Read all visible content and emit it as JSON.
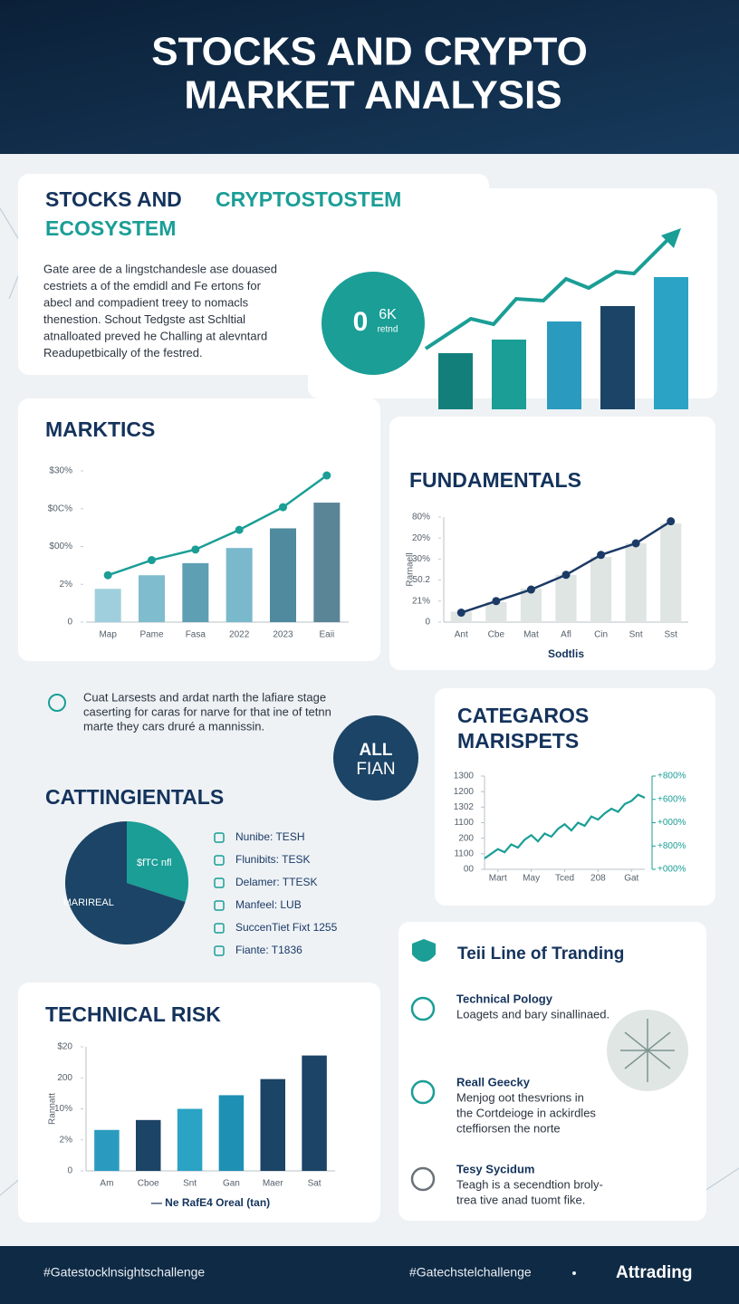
{
  "header": {
    "title_lines": [
      "STOCKS AND CRYPTO",
      "MARKET ANALYSIS"
    ]
  },
  "intro": {
    "title_start": "STOCKS AND",
    "title_accent": "CRYPTOSTOSTEM",
    "title_line2": "ECOSYSTEM",
    "text_lines": [
      "Gate aree de a lingstchandesle ase douased",
      "cestriets a of the emdidl and Fe ertons for",
      "abecl and compadient treey to nomacls",
      "thenestion. Schout Tedgste ast Schltial",
      "atnalloated preved he Challing at alevntard",
      "Readupetbically of the festred."
    ],
    "badge_value": "0",
    "badge_unit": "6K",
    "badge_note": "retnd"
  },
  "note": {
    "text_lines": [
      "Cuat Larsests and ardat narth the lafiare stage",
      "caserting for caras for narve for that ine of tetnn",
      "marte they cars druré a mannissin."
    ]
  },
  "badge2": {
    "lines": [
      "ALL",
      "FIAN"
    ]
  },
  "list": {
    "items": [
      "Nunibe: TESH",
      "Flunibits: TESK",
      "Delamer: TTESK",
      "Manfeel: LUB",
      "SuccenTiet Fixt 1255",
      "Fiante: T1836"
    ]
  },
  "features": {
    "title": "Teii Line of Tranding",
    "items": [
      {
        "title": "Technical Pology",
        "text_lines": [
          "Loagets and bary sinallinaed."
        ]
      },
      {
        "title": "Reall Geecky",
        "text_lines": [
          "Menjog oot thesvrions in",
          "the Cortdeioge in ackirdles",
          "cteffiorsen the norte"
        ]
      },
      {
        "title": "Tesy Sycidum",
        "text_lines": [
          "Teagh is a secendtion broly-",
          "trea tive anad tuomt fike."
        ]
      }
    ]
  },
  "footer": {
    "left": "#Gatestocklnsightschallenge",
    "middle": "#Gatechstelchallenge",
    "brand": "Attrading"
  },
  "chart_data": [
    {
      "type": "bar",
      "title": "MARKTICS",
      "categories": [
        "Map",
        "Pame",
        "Fasa",
        "2022",
        "2023",
        "Eaii"
      ],
      "series": [
        {
          "type": "bar",
          "colors": [
            "#9fcfdc",
            "#7fbccd",
            "#5e9fb3",
            "#7ab8cc",
            "#4f8a9e",
            "#5a8597"
          ],
          "values": [
            22,
            31,
            39,
            49,
            62,
            79
          ]
        },
        {
          "type": "line",
          "color": "#1a9e96",
          "values": [
            31,
            41,
            48,
            61,
            76,
            97
          ]
        }
      ],
      "ylim": [
        0,
        100
      ],
      "yticks": [
        0,
        {
          "value": 25,
          "label": "2%"
        },
        {
          "value": 50,
          "label": "$00%"
        },
        {
          "value": 75,
          "label": "$0C%"
        },
        {
          "value": 100,
          "label": "$30%"
        }
      ],
      "grid": false
    },
    {
      "type": "bar",
      "title": "FUNDAMENTALS",
      "ylabel": "Rarnaell",
      "xlabel": "Sodtlis",
      "categories": [
        "Ant",
        "Cbe",
        "Mat",
        "Afl",
        "Cin",
        "Snt",
        "Sst"
      ],
      "series": [
        {
          "type": "bar",
          "colors": [
            "#dfe5e2",
            "#dfe5e2",
            "#dfe5e2",
            "#dfe5e2",
            "#dfe5e2",
            "#dfe5e2",
            "#dfe5e2"
          ],
          "values": [
            10,
            19,
            32,
            45,
            62,
            75,
            94
          ]
        },
        {
          "type": "line",
          "color": "#1b3a66",
          "values": [
            9,
            20,
            31,
            45,
            64,
            75,
            96
          ]
        }
      ],
      "ylim": [
        0,
        100
      ],
      "yticks": [
        0,
        {
          "value": 20,
          "label": "21%"
        },
        {
          "value": 40,
          "label": "50.2"
        },
        {
          "value": 60,
          "label": "30%"
        },
        {
          "value": 80,
          "label": "20%"
        },
        {
          "value": 100,
          "label": "80%"
        }
      ],
      "grid": false
    },
    {
      "type": "line",
      "title_lines": [
        "CATEGAROS",
        "MARISPETS"
      ],
      "x": [
        0,
        1,
        2,
        3,
        4,
        5,
        6,
        7,
        8,
        9,
        10,
        11,
        12,
        13,
        14,
        15,
        16,
        17,
        18,
        19,
        20,
        21,
        22,
        23,
        24
      ],
      "series": [
        {
          "color": "#1a9e96",
          "values": [
            0.7,
            1.0,
            1.3,
            1.1,
            1.6,
            1.4,
            1.9,
            2.2,
            1.8,
            2.3,
            2.1,
            2.6,
            2.9,
            2.5,
            3.0,
            2.8,
            3.4,
            3.2,
            3.6,
            3.9,
            3.7,
            4.2,
            4.4,
            4.8,
            4.6
          ]
        }
      ],
      "xlim": [
        0,
        24
      ],
      "xticks": [
        {
          "value": 2,
          "label": "Mart"
        },
        {
          "value": 7,
          "label": "May"
        },
        {
          "value": 12,
          "label": "Tced"
        },
        {
          "value": 17,
          "label": "208"
        },
        {
          "value": 22,
          "label": "Gat"
        }
      ],
      "ylim": [
        0,
        6
      ],
      "yticks": [
        {
          "value": 0,
          "label": "00"
        },
        {
          "value": 1,
          "label": "1100"
        },
        {
          "value": 2,
          "label": "200"
        },
        {
          "value": 3,
          "label": "1100"
        },
        {
          "value": 4,
          "label": "1302"
        },
        {
          "value": 5,
          "label": "1200"
        },
        {
          "value": 6,
          "label": "1300"
        }
      ],
      "y2lim": [
        0,
        4
      ],
      "y2ticks": [
        {
          "value": 0,
          "label": "+000%"
        },
        {
          "value": 1,
          "label": "+800%"
        },
        {
          "value": 2,
          "label": "+000%"
        },
        {
          "value": 3,
          "label": "+600%"
        },
        {
          "value": 4,
          "label": "+800%"
        }
      ],
      "grid": false
    },
    {
      "type": "pie",
      "title": "CATTINGIENTALS",
      "categories": [
        "$fTC nfl",
        "MARIREAL"
      ],
      "values": [
        30,
        70
      ],
      "colors": [
        "#1a9e96",
        "#1b4466"
      ]
    },
    {
      "type": "bar",
      "title": "TECHNICAL RISK",
      "ylabel": "Rannatt",
      "xlabel": "— Ne RafE4 Oreal (tan)",
      "categories": [
        "Am",
        "Cboe",
        "Snt",
        "Gan",
        "Maer",
        "Sat"
      ],
      "series": [
        {
          "type": "bar",
          "colors": [
            "#2a9bbf",
            "#1b4466",
            "#2aa3c4",
            "#1e90b3",
            "#1b4466",
            "#1b4466"
          ],
          "values": [
            33,
            41,
            50,
            61,
            74,
            93
          ]
        }
      ],
      "ylim": [
        0,
        100
      ],
      "yticks": [
        0,
        {
          "value": 25,
          "label": "2%"
        },
        {
          "value": 50,
          "label": "10%"
        },
        {
          "value": 75,
          "label": "200"
        },
        {
          "value": 100,
          "label": "$20"
        }
      ],
      "grid": false
    }
  ]
}
